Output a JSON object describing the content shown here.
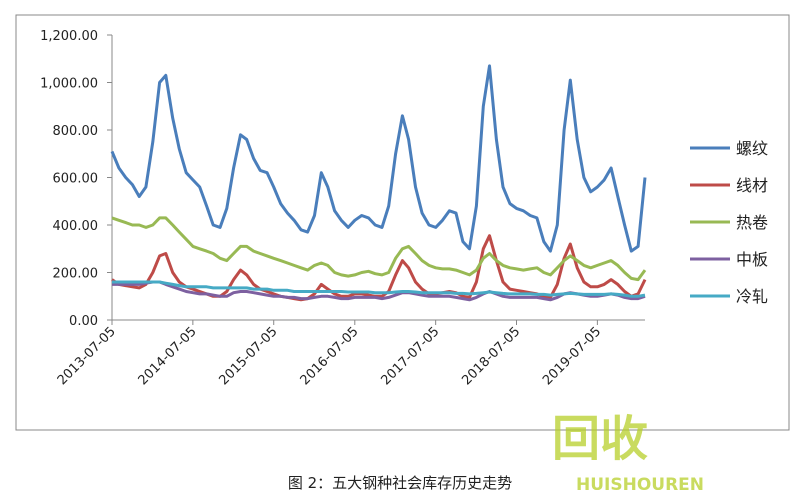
{
  "chart_data": {
    "type": "line",
    "caption": "图 2：五大钢种社会库存历史走势",
    "watermark": [
      "回收",
      "HUISHOUREN"
    ],
    "x": [
      "2013-07-05",
      "2013-08-05",
      "2013-09-05",
      "2013-10-05",
      "2013-11-05",
      "2013-12-05",
      "2014-01-05",
      "2014-02-05",
      "2014-03-05",
      "2014-04-05",
      "2014-05-05",
      "2014-06-05",
      "2014-07-05",
      "2014-08-05",
      "2014-09-05",
      "2014-10-05",
      "2014-11-05",
      "2014-12-05",
      "2015-01-05",
      "2015-02-05",
      "2015-03-05",
      "2015-04-05",
      "2015-05-05",
      "2015-06-05",
      "2015-07-05",
      "2015-08-05",
      "2015-09-05",
      "2015-10-05",
      "2015-11-05",
      "2015-12-05",
      "2016-01-05",
      "2016-02-05",
      "2016-03-05",
      "2016-04-05",
      "2016-05-05",
      "2016-06-05",
      "2016-07-05",
      "2016-08-05",
      "2016-09-05",
      "2016-10-05",
      "2016-11-05",
      "2016-12-05",
      "2017-01-05",
      "2017-02-05",
      "2017-03-05",
      "2017-04-05",
      "2017-05-05",
      "2017-06-05",
      "2017-07-05",
      "2017-08-05",
      "2017-09-05",
      "2017-10-05",
      "2017-11-05",
      "2017-12-05",
      "2018-01-05",
      "2018-02-05",
      "2018-03-05",
      "2018-04-05",
      "2018-05-05",
      "2018-06-05",
      "2018-07-05",
      "2018-08-05",
      "2018-09-05",
      "2018-10-05",
      "2018-11-05",
      "2018-12-05",
      "2019-01-05",
      "2019-02-05",
      "2019-03-05",
      "2019-04-05",
      "2019-05-05",
      "2019-06-05",
      "2019-07-05",
      "2019-08-05",
      "2019-09-05",
      "2019-10-05",
      "2019-11-05",
      "2019-12-05",
      "2020-01-05",
      "2020-02-05"
    ],
    "xlim": [
      "2013-07-05",
      "2020-02-05"
    ],
    "xticks": [
      "2013-07-05",
      "2014-07-05",
      "2015-07-05",
      "2016-07-05",
      "2017-07-05",
      "2018-07-05",
      "2019-07-05"
    ],
    "ylim": [
      0,
      1200
    ],
    "yticks": [
      {
        "value": 0,
        "label": "0.00"
      },
      {
        "value": 200,
        "label": "200.00"
      },
      {
        "value": 400,
        "label": "400.00"
      },
      {
        "value": 600,
        "label": "600.00"
      },
      {
        "value": 800,
        "label": "800.00"
      },
      {
        "value": 1000,
        "label": "1,000.00"
      },
      {
        "value": 1200,
        "label": "1,200.00"
      }
    ],
    "series": [
      {
        "name": "螺纹",
        "color": "#4a7ebb",
        "values": [
          710,
          640,
          600,
          570,
          520,
          560,
          750,
          1000,
          1030,
          850,
          720,
          620,
          590,
          560,
          480,
          400,
          390,
          470,
          640,
          780,
          760,
          680,
          630,
          620,
          560,
          490,
          450,
          420,
          380,
          370,
          440,
          620,
          560,
          460,
          420,
          390,
          420,
          440,
          430,
          400,
          390,
          480,
          700,
          860,
          760,
          560,
          450,
          400,
          390,
          420,
          460,
          450,
          330,
          300,
          480,
          900,
          1070,
          760,
          560,
          490,
          470,
          460,
          440,
          430,
          330,
          290,
          400,
          800,
          1010,
          760,
          600,
          540,
          560,
          590,
          640,
          520,
          400,
          290,
          310,
          600
        ]
      },
      {
        "name": "线材",
        "color": "#be4b48",
        "values": [
          170,
          150,
          145,
          140,
          135,
          150,
          200,
          270,
          280,
          200,
          160,
          140,
          130,
          120,
          110,
          100,
          100,
          120,
          170,
          210,
          190,
          150,
          130,
          120,
          110,
          100,
          95,
          90,
          85,
          90,
          110,
          150,
          130,
          110,
          100,
          100,
          110,
          110,
          105,
          100,
          100,
          120,
          190,
          250,
          220,
          160,
          130,
          110,
          110,
          115,
          120,
          115,
          100,
          95,
          160,
          300,
          355,
          250,
          160,
          130,
          125,
          120,
          115,
          110,
          100,
          95,
          150,
          260,
          320,
          220,
          160,
          140,
          140,
          150,
          170,
          150,
          120,
          100,
          110,
          170
        ]
      },
      {
        "name": "热卷",
        "color": "#98b954",
        "values": [
          430,
          420,
          410,
          400,
          400,
          390,
          400,
          430,
          430,
          400,
          370,
          340,
          310,
          300,
          290,
          280,
          260,
          250,
          280,
          310,
          310,
          290,
          280,
          270,
          260,
          250,
          240,
          230,
          220,
          210,
          230,
          240,
          230,
          200,
          190,
          185,
          190,
          200,
          205,
          195,
          190,
          200,
          260,
          300,
          310,
          280,
          250,
          230,
          220,
          215,
          215,
          210,
          200,
          190,
          210,
          260,
          280,
          250,
          230,
          220,
          215,
          210,
          215,
          220,
          200,
          190,
          220,
          250,
          270,
          250,
          230,
          220,
          230,
          240,
          250,
          230,
          200,
          175,
          170,
          210
        ]
      },
      {
        "name": "中板",
        "color": "#7d60a0",
        "values": [
          150,
          150,
          150,
          150,
          150,
          155,
          160,
          160,
          150,
          140,
          130,
          120,
          115,
          110,
          110,
          105,
          100,
          100,
          115,
          120,
          120,
          115,
          110,
          105,
          100,
          100,
          95,
          95,
          90,
          90,
          95,
          100,
          100,
          95,
          90,
          90,
          95,
          95,
          95,
          95,
          90,
          95,
          105,
          115,
          115,
          110,
          105,
          100,
          100,
          100,
          100,
          95,
          90,
          85,
          95,
          110,
          120,
          110,
          100,
          95,
          95,
          95,
          95,
          95,
          90,
          85,
          95,
          110,
          115,
          110,
          105,
          100,
          100,
          105,
          110,
          105,
          95,
          90,
          90,
          100
        ]
      },
      {
        "name": "冷轧",
        "color": "#46aac5",
        "values": [
          160,
          160,
          160,
          160,
          160,
          160,
          160,
          160,
          155,
          150,
          145,
          140,
          140,
          140,
          140,
          135,
          135,
          135,
          135,
          135,
          135,
          130,
          130,
          130,
          125,
          125,
          125,
          120,
          120,
          120,
          120,
          120,
          120,
          120,
          120,
          118,
          118,
          118,
          118,
          115,
          115,
          115,
          118,
          120,
          120,
          118,
          115,
          115,
          115,
          115,
          115,
          112,
          112,
          110,
          112,
          115,
          118,
          115,
          112,
          110,
          110,
          110,
          110,
          108,
          108,
          105,
          108,
          110,
          112,
          110,
          108,
          108,
          108,
          108,
          110,
          108,
          105,
          100,
          100,
          105
        ]
      }
    ],
    "grid": false,
    "legend": "right"
  }
}
